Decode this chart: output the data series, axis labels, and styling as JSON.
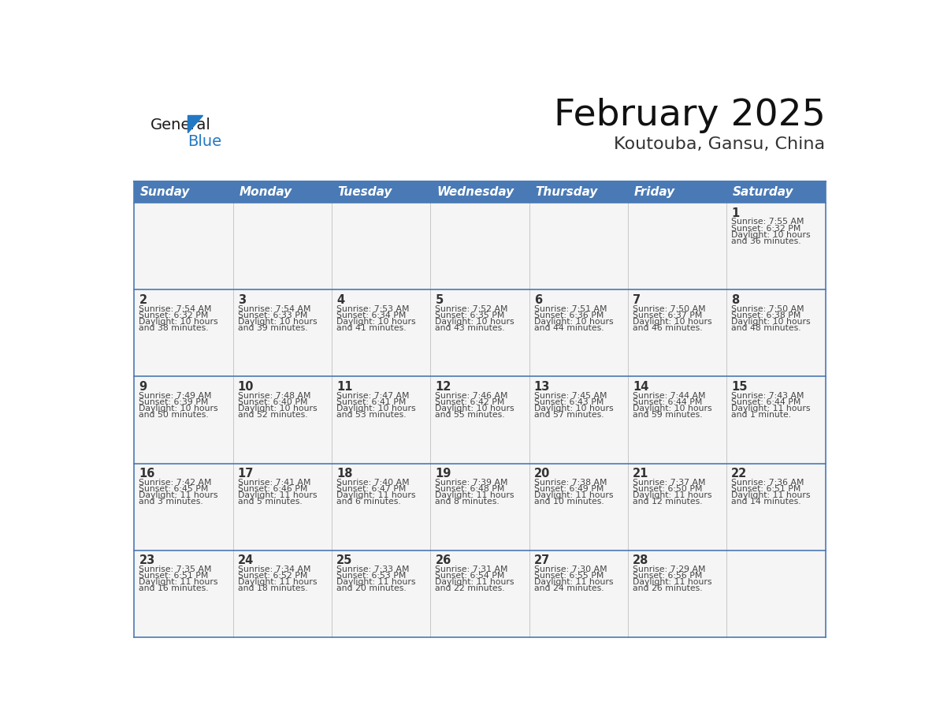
{
  "title": "February 2025",
  "subtitle": "Koutouba, Gansu, China",
  "header_bg_color": "#4a7ab5",
  "header_text_color": "#ffffff",
  "days_of_week": [
    "Sunday",
    "Monday",
    "Tuesday",
    "Wednesday",
    "Thursday",
    "Friday",
    "Saturday"
  ],
  "cell_bg_color": "#f5f5f5",
  "border_color": "#4a7ab5",
  "row_divider_color": "#4a7ab5",
  "col_divider_color": "#c0c0c0",
  "day_num_color": "#333333",
  "info_text_color": "#444444",
  "calendar": [
    [
      null,
      null,
      null,
      null,
      null,
      null,
      {
        "day": 1,
        "sunrise": "7:55 AM",
        "sunset": "6:32 PM",
        "daylight": "10 hours and 36 minutes."
      }
    ],
    [
      {
        "day": 2,
        "sunrise": "7:54 AM",
        "sunset": "6:32 PM",
        "daylight": "10 hours and 38 minutes."
      },
      {
        "day": 3,
        "sunrise": "7:54 AM",
        "sunset": "6:33 PM",
        "daylight": "10 hours and 39 minutes."
      },
      {
        "day": 4,
        "sunrise": "7:53 AM",
        "sunset": "6:34 PM",
        "daylight": "10 hours and 41 minutes."
      },
      {
        "day": 5,
        "sunrise": "7:52 AM",
        "sunset": "6:35 PM",
        "daylight": "10 hours and 43 minutes."
      },
      {
        "day": 6,
        "sunrise": "7:51 AM",
        "sunset": "6:36 PM",
        "daylight": "10 hours and 44 minutes."
      },
      {
        "day": 7,
        "sunrise": "7:50 AM",
        "sunset": "6:37 PM",
        "daylight": "10 hours and 46 minutes."
      },
      {
        "day": 8,
        "sunrise": "7:50 AM",
        "sunset": "6:38 PM",
        "daylight": "10 hours and 48 minutes."
      }
    ],
    [
      {
        "day": 9,
        "sunrise": "7:49 AM",
        "sunset": "6:39 PM",
        "daylight": "10 hours and 50 minutes."
      },
      {
        "day": 10,
        "sunrise": "7:48 AM",
        "sunset": "6:40 PM",
        "daylight": "10 hours and 52 minutes."
      },
      {
        "day": 11,
        "sunrise": "7:47 AM",
        "sunset": "6:41 PM",
        "daylight": "10 hours and 53 minutes."
      },
      {
        "day": 12,
        "sunrise": "7:46 AM",
        "sunset": "6:42 PM",
        "daylight": "10 hours and 55 minutes."
      },
      {
        "day": 13,
        "sunrise": "7:45 AM",
        "sunset": "6:43 PM",
        "daylight": "10 hours and 57 minutes."
      },
      {
        "day": 14,
        "sunrise": "7:44 AM",
        "sunset": "6:44 PM",
        "daylight": "10 hours and 59 minutes."
      },
      {
        "day": 15,
        "sunrise": "7:43 AM",
        "sunset": "6:44 PM",
        "daylight": "11 hours and 1 minute."
      }
    ],
    [
      {
        "day": 16,
        "sunrise": "7:42 AM",
        "sunset": "6:45 PM",
        "daylight": "11 hours and 3 minutes."
      },
      {
        "day": 17,
        "sunrise": "7:41 AM",
        "sunset": "6:46 PM",
        "daylight": "11 hours and 5 minutes."
      },
      {
        "day": 18,
        "sunrise": "7:40 AM",
        "sunset": "6:47 PM",
        "daylight": "11 hours and 6 minutes."
      },
      {
        "day": 19,
        "sunrise": "7:39 AM",
        "sunset": "6:48 PM",
        "daylight": "11 hours and 8 minutes."
      },
      {
        "day": 20,
        "sunrise": "7:38 AM",
        "sunset": "6:49 PM",
        "daylight": "11 hours and 10 minutes."
      },
      {
        "day": 21,
        "sunrise": "7:37 AM",
        "sunset": "6:50 PM",
        "daylight": "11 hours and 12 minutes."
      },
      {
        "day": 22,
        "sunrise": "7:36 AM",
        "sunset": "6:51 PM",
        "daylight": "11 hours and 14 minutes."
      }
    ],
    [
      {
        "day": 23,
        "sunrise": "7:35 AM",
        "sunset": "6:51 PM",
        "daylight": "11 hours and 16 minutes."
      },
      {
        "day": 24,
        "sunrise": "7:34 AM",
        "sunset": "6:52 PM",
        "daylight": "11 hours and 18 minutes."
      },
      {
        "day": 25,
        "sunrise": "7:33 AM",
        "sunset": "6:53 PM",
        "daylight": "11 hours and 20 minutes."
      },
      {
        "day": 26,
        "sunrise": "7:31 AM",
        "sunset": "6:54 PM",
        "daylight": "11 hours and 22 minutes."
      },
      {
        "day": 27,
        "sunrise": "7:30 AM",
        "sunset": "6:55 PM",
        "daylight": "11 hours and 24 minutes."
      },
      {
        "day": 28,
        "sunrise": "7:29 AM",
        "sunset": "6:56 PM",
        "daylight": "11 hours and 26 minutes."
      },
      null
    ]
  ],
  "logo_general_color": "#1a1a1a",
  "logo_blue_color": "#2278c3",
  "logo_triangle_color": "#2278c3",
  "fig_width": 11.88,
  "fig_height": 9.18,
  "dpi": 100
}
